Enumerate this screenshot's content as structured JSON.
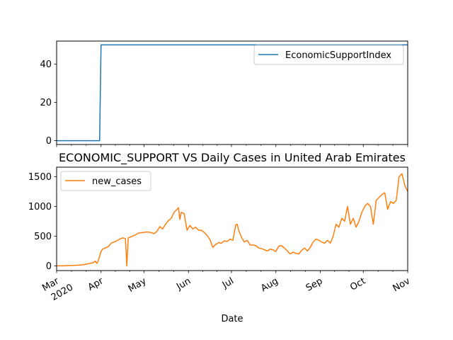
{
  "chart_data": [
    {
      "type": "line",
      "title": "",
      "xlabel": "",
      "ylabel": "",
      "ylim": [
        -2,
        52
      ],
      "yticks": [
        0,
        20,
        40
      ],
      "xlim": [
        "2020-03-01",
        "2020-11-01"
      ],
      "legend": {
        "placement": "upper-right"
      },
      "grid": false,
      "series": [
        {
          "name": "EconomicSupportIndex",
          "color": "#1f77b4",
          "x": [
            "2020-03-01",
            "2020-03-31",
            "2020-04-01",
            "2020-11-01"
          ],
          "values": [
            0,
            0,
            50,
            50
          ]
        }
      ]
    },
    {
      "type": "line",
      "title": "ECONOMIC_SUPPORT VS Daily Cases in United Arab Emirates",
      "xlabel": "Date",
      "ylabel": "",
      "ylim": [
        -80,
        1660
      ],
      "yticks": [
        0,
        500,
        1000,
        1500
      ],
      "xlim": [
        "2020-03-01",
        "2020-11-01"
      ],
      "xticks": [
        {
          "date": "2020-03-01",
          "label": "Mar",
          "sublabel": "2020"
        },
        {
          "date": "2020-04-01",
          "label": "Apr"
        },
        {
          "date": "2020-05-01",
          "label": "May"
        },
        {
          "date": "2020-06-01",
          "label": "Jun"
        },
        {
          "date": "2020-07-01",
          "label": "Jul"
        },
        {
          "date": "2020-08-01",
          "label": "Aug"
        },
        {
          "date": "2020-09-01",
          "label": "Sep"
        },
        {
          "date": "2020-10-01",
          "label": "Oct"
        },
        {
          "date": "2020-11-01",
          "label": "Nov"
        }
      ],
      "legend": {
        "placement": "upper-left"
      },
      "grid": false,
      "series": [
        {
          "name": "new_cases",
          "color": "#ff7f0e",
          "x": [
            "2020-03-01",
            "2020-03-05",
            "2020-03-10",
            "2020-03-15",
            "2020-03-18",
            "2020-03-20",
            "2020-03-22",
            "2020-03-24",
            "2020-03-26",
            "2020-03-27",
            "2020-03-28",
            "2020-03-29",
            "2020-03-30",
            "2020-04-01",
            "2020-04-02",
            "2020-04-04",
            "2020-04-06",
            "2020-04-08",
            "2020-04-10",
            "2020-04-12",
            "2020-04-14",
            "2020-04-16",
            "2020-04-18",
            "2020-04-19",
            "2020-04-20",
            "2020-04-21",
            "2020-04-23",
            "2020-04-25",
            "2020-04-27",
            "2020-04-30",
            "2020-05-03",
            "2020-05-06",
            "2020-05-08",
            "2020-05-10",
            "2020-05-12",
            "2020-05-14",
            "2020-05-16",
            "2020-05-18",
            "2020-05-20",
            "2020-05-22",
            "2020-05-24",
            "2020-05-25",
            "2020-05-26",
            "2020-05-27",
            "2020-05-29",
            "2020-05-31",
            "2020-06-02",
            "2020-06-04",
            "2020-06-06",
            "2020-06-08",
            "2020-06-10",
            "2020-06-12",
            "2020-06-13",
            "2020-06-14",
            "2020-06-16",
            "2020-06-18",
            "2020-06-20",
            "2020-06-22",
            "2020-06-24",
            "2020-06-26",
            "2020-06-28",
            "2020-06-30",
            "2020-07-02",
            "2020-07-04",
            "2020-07-05",
            "2020-07-06",
            "2020-07-08",
            "2020-07-10",
            "2020-07-12",
            "2020-07-14",
            "2020-07-16",
            "2020-07-18",
            "2020-07-20",
            "2020-07-22",
            "2020-07-24",
            "2020-07-26",
            "2020-07-28",
            "2020-07-30",
            "2020-08-01",
            "2020-08-03",
            "2020-08-05",
            "2020-08-07",
            "2020-08-09",
            "2020-08-11",
            "2020-08-13",
            "2020-08-15",
            "2020-08-17",
            "2020-08-19",
            "2020-08-21",
            "2020-08-23",
            "2020-08-25",
            "2020-08-27",
            "2020-08-29",
            "2020-08-31",
            "2020-09-02",
            "2020-09-04",
            "2020-09-06",
            "2020-09-08",
            "2020-09-10",
            "2020-09-12",
            "2020-09-14",
            "2020-09-16",
            "2020-09-18",
            "2020-09-20",
            "2020-09-22",
            "2020-09-24",
            "2020-09-26",
            "2020-09-28",
            "2020-09-30",
            "2020-10-02",
            "2020-10-04",
            "2020-10-06",
            "2020-10-08",
            "2020-10-10",
            "2020-10-12",
            "2020-10-14",
            "2020-10-16",
            "2020-10-18",
            "2020-10-20",
            "2020-10-22",
            "2020-10-24",
            "2020-10-26",
            "2020-10-28",
            "2020-10-30",
            "2020-11-01"
          ],
          "values": [
            0,
            0,
            5,
            10,
            15,
            20,
            30,
            40,
            50,
            60,
            80,
            40,
            80,
            240,
            280,
            300,
            320,
            380,
            400,
            420,
            450,
            470,
            460,
            0,
            470,
            480,
            500,
            520,
            550,
            560,
            570,
            560,
            540,
            580,
            660,
            620,
            700,
            760,
            800,
            900,
            950,
            980,
            780,
            900,
            880,
            600,
            680,
            620,
            650,
            600,
            600,
            560,
            540,
            510,
            440,
            310,
            360,
            390,
            380,
            420,
            410,
            450,
            430,
            690,
            700,
            600,
            480,
            400,
            430,
            350,
            350,
            340,
            300,
            290,
            270,
            250,
            280,
            270,
            240,
            330,
            340,
            300,
            250,
            200,
            230,
            210,
            200,
            260,
            300,
            250,
            310,
            400,
            450,
            430,
            400,
            380,
            430,
            380,
            500,
            700,
            650,
            800,
            750,
            1000,
            700,
            800,
            650,
            750,
            900,
            1000,
            1050,
            1000,
            700,
            1100,
            1150,
            1200,
            1230,
            950,
            1080,
            1050,
            1100,
            1500,
            1550,
            1350,
            1250
          ]
        }
      ]
    }
  ]
}
